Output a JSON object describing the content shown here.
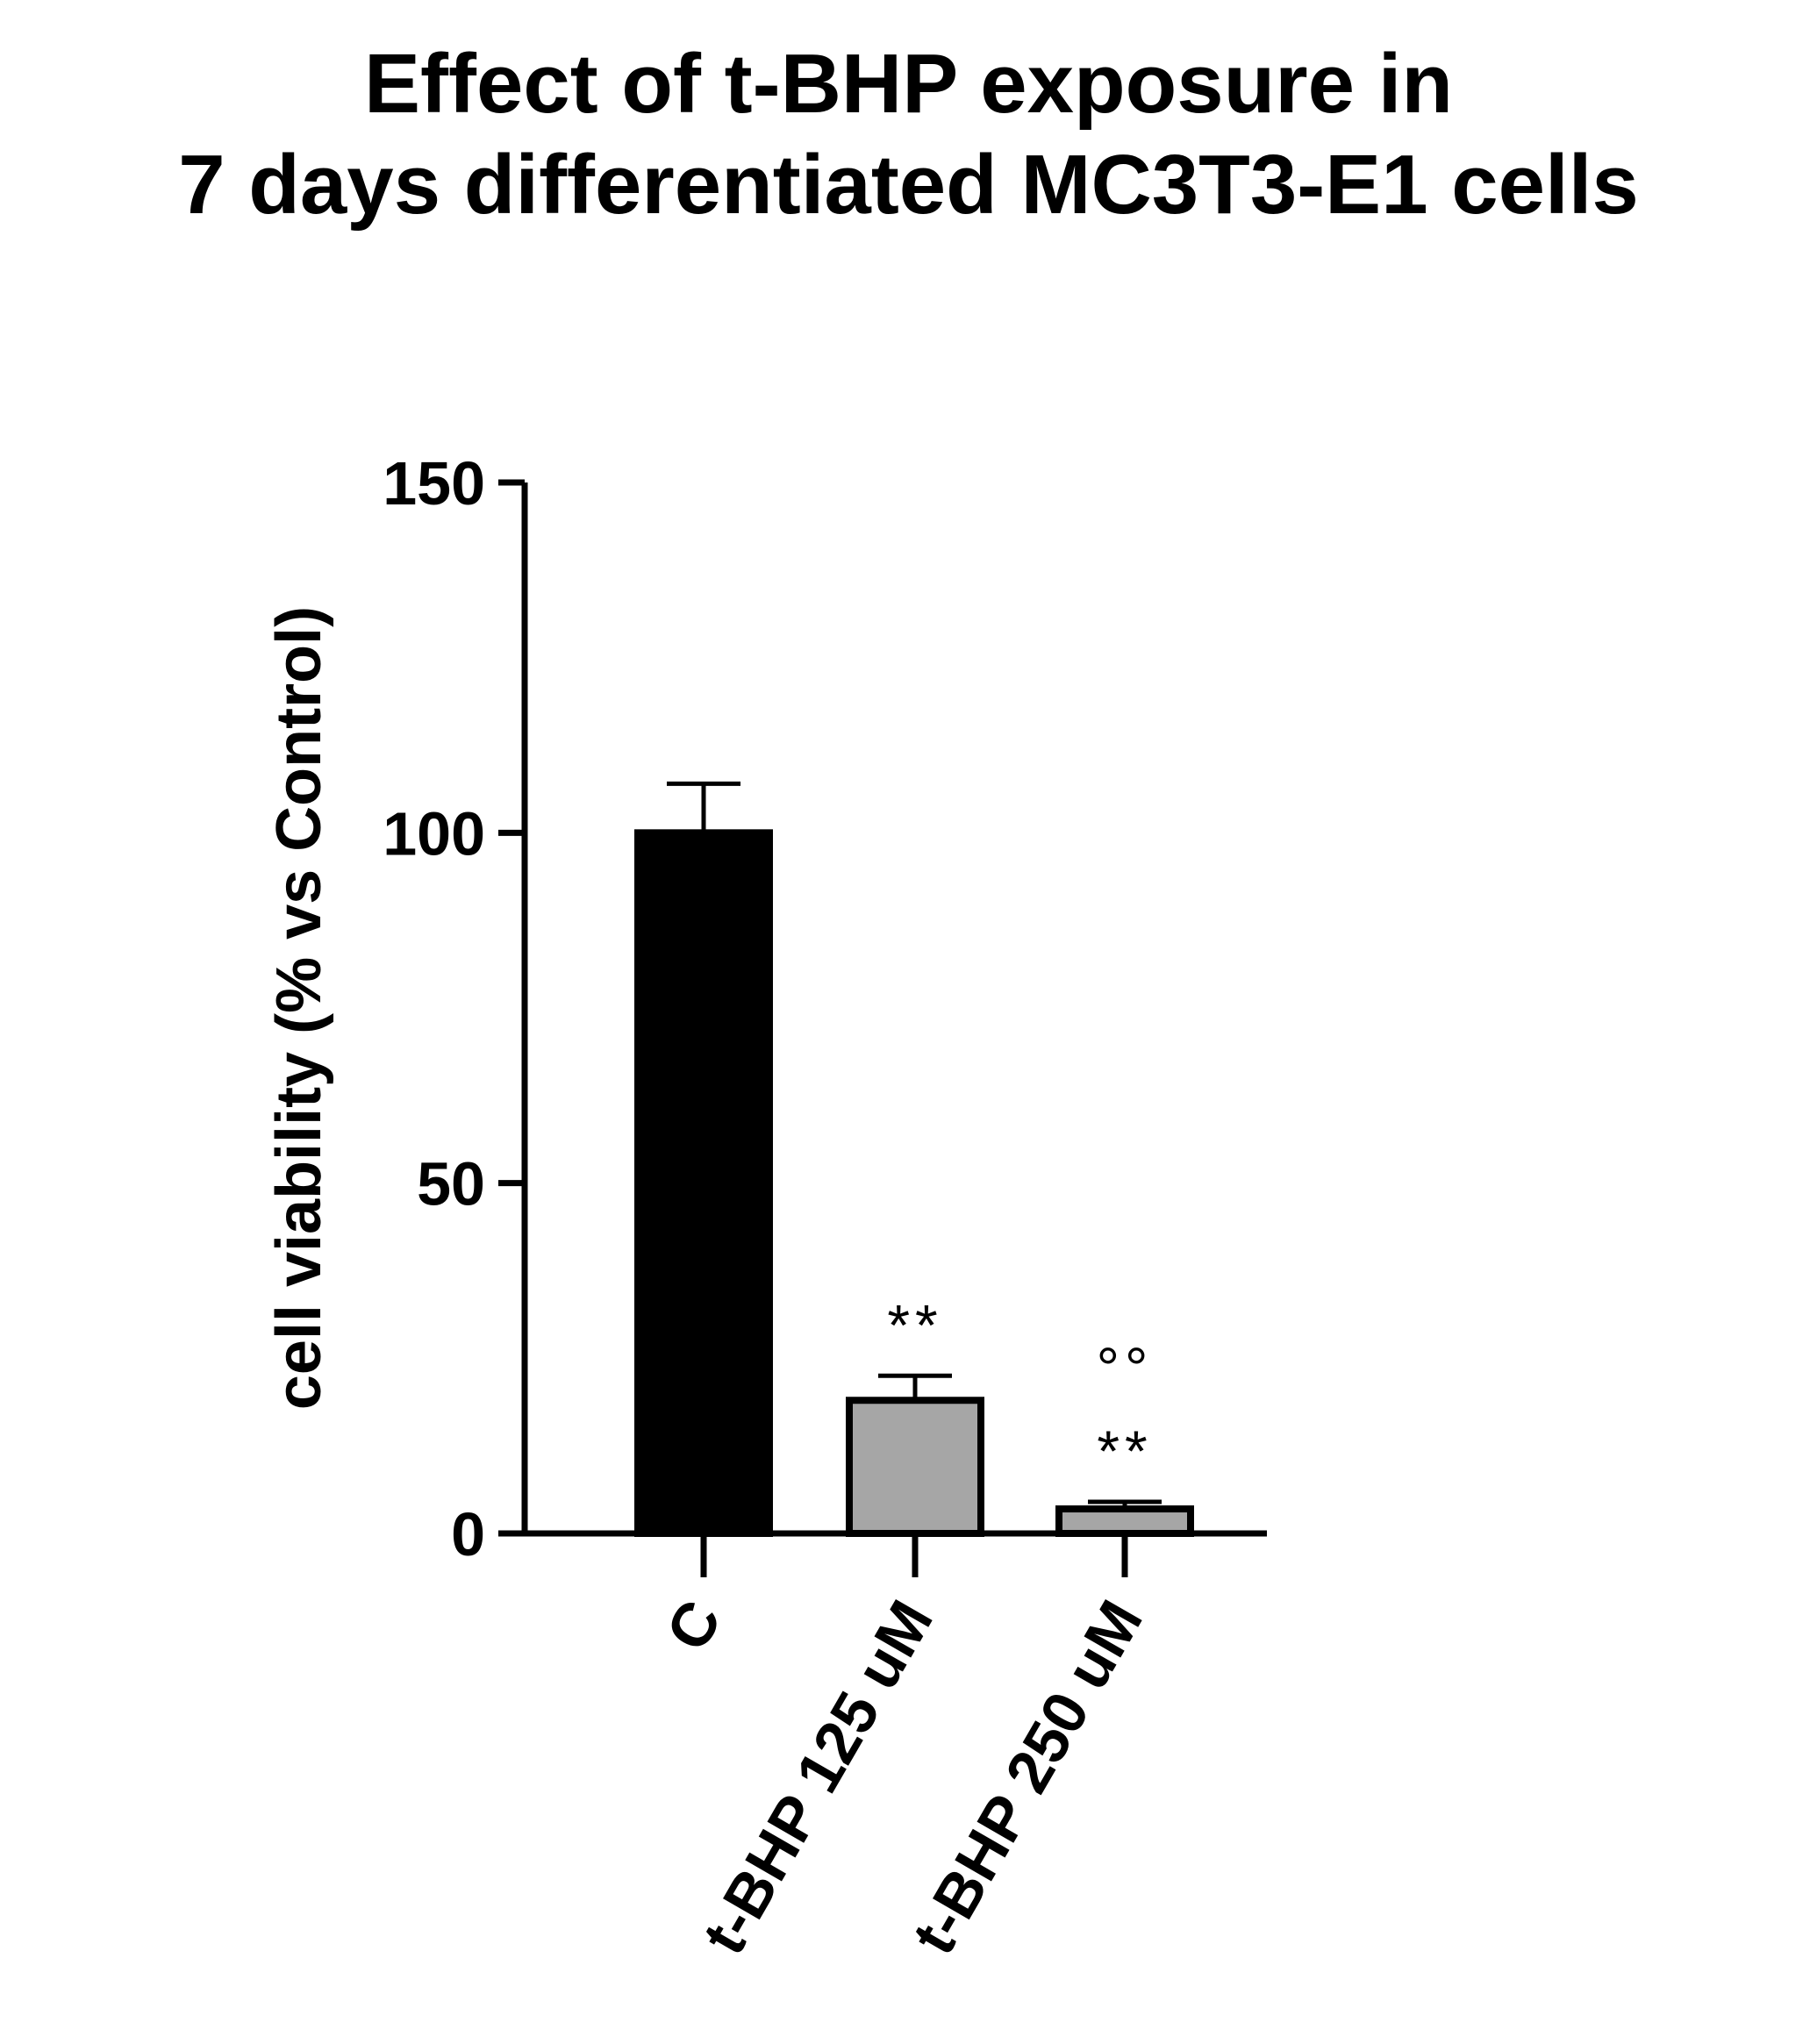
{
  "chart_data": {
    "type": "bar",
    "title_lines": [
      "Effect of t-BHP exposure in",
      "7 days differentiated MC3T3-E1 cells"
    ],
    "ylabel": "cell viability  (% vs Control)",
    "xlabel": "",
    "categories": [
      "C",
      "t-BHP 125 uM",
      "t-BHP 250 uM"
    ],
    "values": [
      100,
      19,
      3.5
    ],
    "errors": [
      7,
      3.5,
      1
    ],
    "ylim": [
      0,
      150
    ],
    "yticks": [
      0,
      50,
      100,
      150
    ],
    "ytick_labels": [
      "0",
      "50",
      "100",
      "150"
    ],
    "bar_colors": [
      "#000000",
      "#a6a6a6",
      "#a6a6a6"
    ],
    "annotations": [
      {
        "category_index": 1,
        "lines": [
          "**"
        ]
      },
      {
        "category_index": 2,
        "lines": [
          "°°",
          "**"
        ]
      }
    ],
    "grid": false,
    "legend": "none"
  }
}
